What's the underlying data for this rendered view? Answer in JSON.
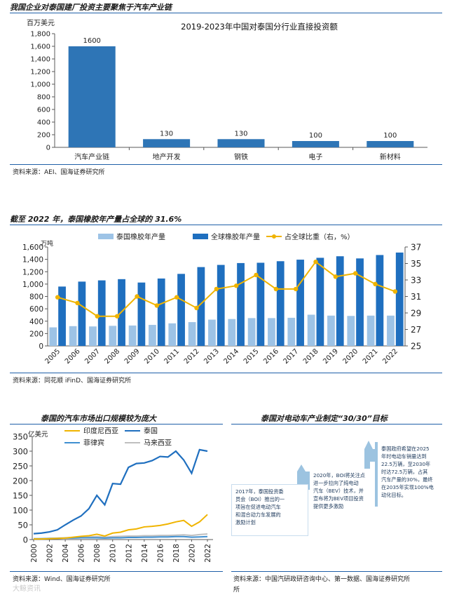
{
  "sections": {
    "s1": {
      "header": "我国企业对泰国建厂投资主要聚焦于汽车产业链",
      "source": "资料来源：AEI、国海证券研究所"
    },
    "s2": {
      "header": "截至 2022 年，泰国橡胶年产量占全球的 31.6%",
      "source": "资料来源：同花顺 iFinD、国海证券研究所"
    },
    "s3": {
      "header": "泰国的汽车市场出口规模较为庞大",
      "source": "资料来源：Wind、国海证券研究所"
    },
    "s4": {
      "header": "泰国对电动车产业制定“30/30”目标",
      "source_line1": "资料来源：中国汽研政研咨询中心、第一数据、国海证券研究所",
      "source_line2": "所"
    }
  },
  "watermark": "大鲸资讯",
  "timeline": {
    "box1": [
      "2017年，泰国投资委",
      "员会（BOI）推出的一",
      "项旨在促进电动汽车",
      "和混合动力车发展的",
      "激励计划"
    ],
    "box2": [
      "2020年，BOI将关注点",
      "进一步拉向了纯电动",
      "汽车（BEV）技术，并",
      "宣布将为BEV项目投资",
      "提供更多激励"
    ],
    "box3": [
      "泰国政府希望在2025",
      "年时电动车销量达到",
      "22.5万辆，至2030年",
      "时达72.5万辆，占其",
      "汽车产量的30%，最终",
      "在2035年实现100%电",
      "动化目标。"
    ]
  },
  "chart_data": [
    {
      "type": "bar",
      "title": "2019-2023年中国对泰国分行业直接投资额",
      "ylabel": "百万美元",
      "categories": [
        "汽车产业链",
        "地产开发",
        "钢铁",
        "电子",
        "新材料"
      ],
      "values": [
        1600,
        130,
        130,
        100,
        100
      ],
      "ylim": [
        0,
        1800
      ],
      "yticks": [
        "0",
        "200",
        "400",
        "600",
        "800",
        "1,000",
        "1,200",
        "1,400",
        "1,600",
        "1,800"
      ],
      "colors": {
        "bar": "#2e75b6"
      }
    },
    {
      "type": "bar",
      "ylabel_left": "万吨",
      "x": [
        "2005",
        "2006",
        "2007",
        "2008",
        "2009",
        "2010",
        "2011",
        "2012",
        "2013",
        "2014",
        "2015",
        "2016",
        "2017",
        "2018",
        "2019",
        "2020",
        "2021",
        "2022"
      ],
      "ylim_left": [
        0,
        1600
      ],
      "yticks_left": [
        "0",
        "200",
        "400",
        "600",
        "800",
        "1,000",
        "1,200",
        "1,400",
        "1,600"
      ],
      "ylim_right": [
        25,
        37
      ],
      "yticks_right": [
        "25",
        "27",
        "29",
        "31",
        "33",
        "35",
        "37"
      ],
      "legend_position": "top",
      "series": [
        {
          "name": "泰国橡胶年产量",
          "kind": "bar",
          "axis": "left",
          "color": "#9dc3e6",
          "values": [
            300,
            320,
            315,
            325,
            330,
            340,
            365,
            385,
            425,
            435,
            450,
            450,
            455,
            505,
            490,
            485,
            490,
            490
          ]
        },
        {
          "name": "全球橡胶年产量",
          "kind": "bar",
          "axis": "left",
          "color": "#1f6fbf",
          "values": [
            960,
            1040,
            1060,
            1080,
            1025,
            1090,
            1165,
            1275,
            1310,
            1340,
            1345,
            1370,
            1395,
            1425,
            1450,
            1415,
            1470,
            1510
          ]
        },
        {
          "name": "占全球比重（右，%）",
          "kind": "line",
          "axis": "right",
          "color": "#f0b400",
          "values": [
            30.9,
            30.2,
            28.6,
            28.6,
            31.0,
            29.9,
            30.9,
            29.6,
            31.9,
            32.3,
            33.6,
            31.9,
            31.9,
            35.2,
            33.4,
            33.8,
            32.5,
            31.6
          ]
        }
      ]
    },
    {
      "type": "line",
      "ylabel": "亿美元",
      "x": [
        2000,
        2001,
        2002,
        2003,
        2004,
        2005,
        2006,
        2007,
        2008,
        2009,
        2010,
        2011,
        2012,
        2013,
        2014,
        2015,
        2016,
        2017,
        2018,
        2019,
        2020,
        2021,
        2022
      ],
      "xticks": [
        "2000",
        "2002",
        "2004",
        "2006",
        "2008",
        "2010",
        "2012",
        "2014",
        "2016",
        "2018",
        "2020",
        "2022"
      ],
      "ylim": [
        0,
        350
      ],
      "yticks": [
        "0",
        "50",
        "100",
        "150",
        "200",
        "250",
        "300",
        "350"
      ],
      "legend_position": "top",
      "series": [
        {
          "name": "印度尼西亚",
          "color": "#f0b400",
          "values": [
            2,
            2,
            3,
            4,
            5,
            8,
            11,
            13,
            18,
            12,
            22,
            25,
            33,
            36,
            43,
            45,
            48,
            53,
            60,
            65,
            45,
            60,
            85
          ]
        },
        {
          "name": "泰国",
          "color": "#1f6fbf",
          "values": [
            20,
            22,
            26,
            33,
            50,
            66,
            80,
            105,
            150,
            118,
            190,
            188,
            245,
            258,
            260,
            268,
            282,
            280,
            300,
            270,
            225,
            305,
            300
          ]
        },
        {
          "name": "菲律宾",
          "color": "#3f8fd0",
          "values": [
            3,
            3,
            4,
            4,
            5,
            5,
            6,
            6,
            6,
            5,
            6,
            6,
            7,
            7,
            8,
            8,
            9,
            9,
            10,
            10,
            8,
            9,
            10
          ]
        },
        {
          "name": "马来西亚",
          "color": "#bfbfbf",
          "values": [
            2,
            3,
            4,
            5,
            6,
            7,
            8,
            9,
            10,
            8,
            10,
            11,
            12,
            12,
            13,
            13,
            14,
            14,
            15,
            16,
            14,
            17,
            19
          ]
        }
      ]
    }
  ]
}
